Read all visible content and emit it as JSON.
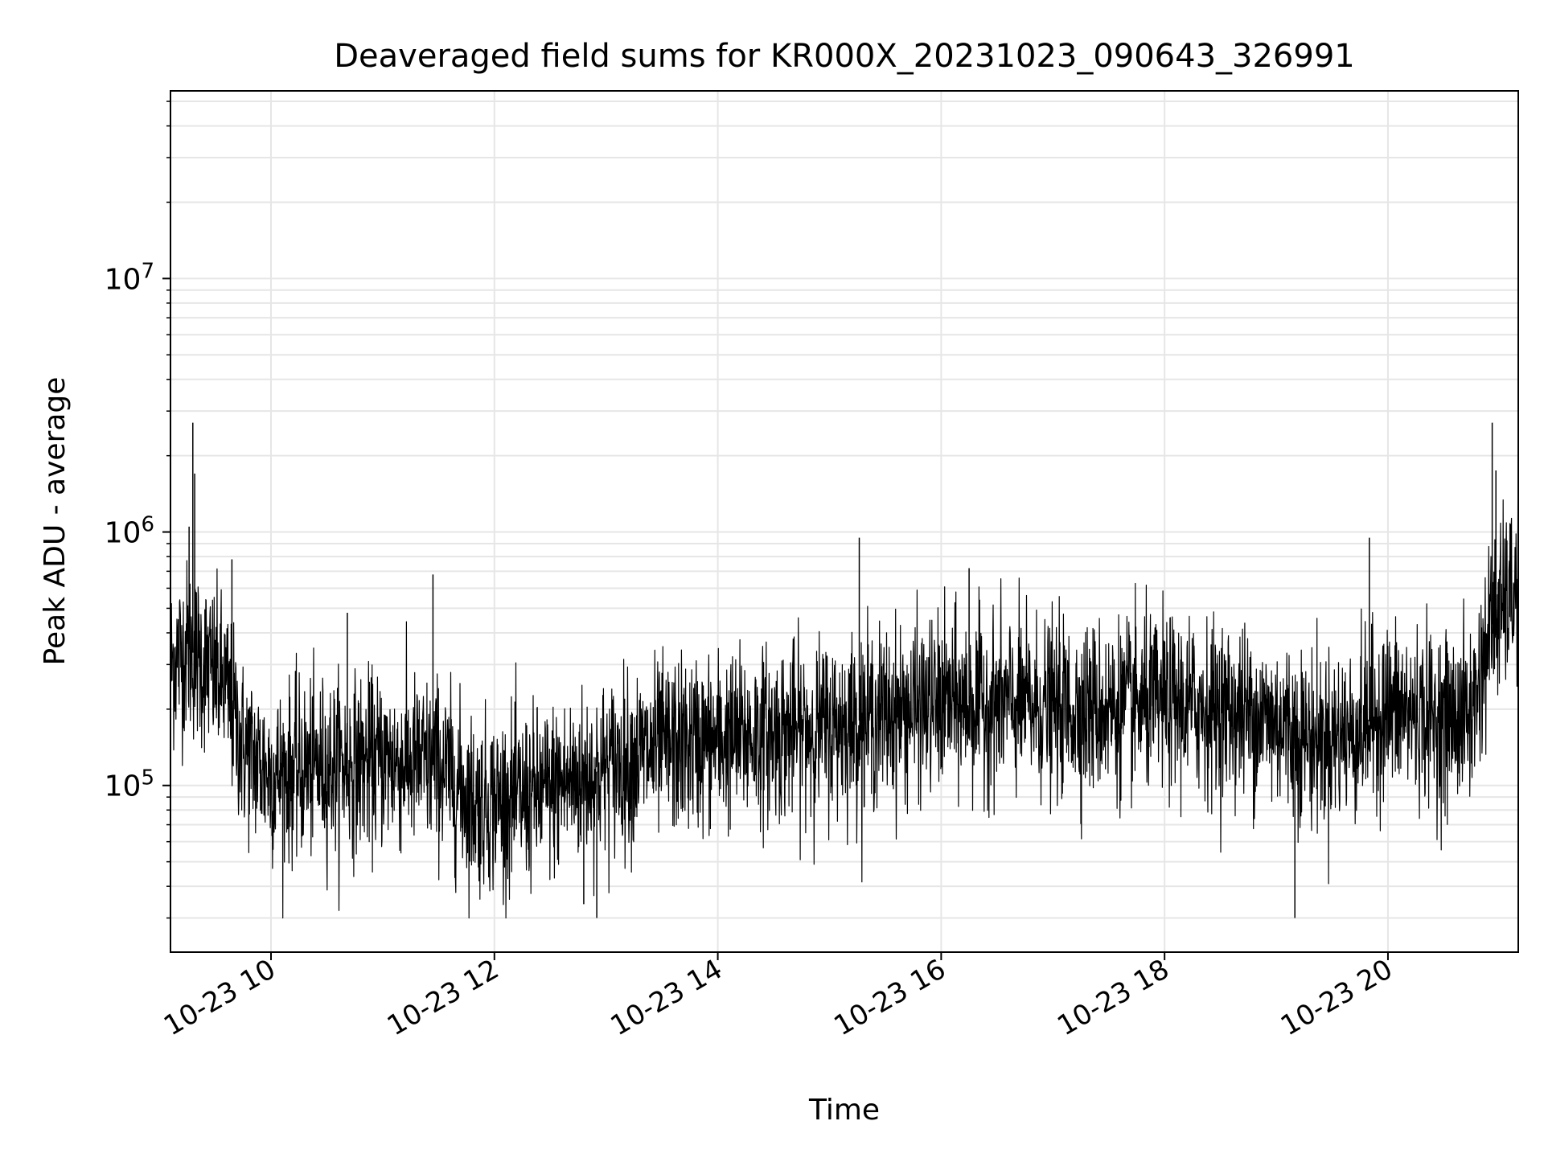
{
  "chart_data": {
    "type": "line",
    "title": "Deaveraged field sums for KR000X_20231023_090643_326991",
    "xlabel": "Time",
    "ylabel": "Peak ADU - average",
    "xscale": "time",
    "yscale": "log",
    "xlim": [
      "2023-10-23 09:06",
      "2023-10-23 21:10"
    ],
    "ylim": [
      22000,
      55000000
    ],
    "grid": true,
    "legend": "none",
    "x_ticks": [
      "10-23 10",
      "10-23 12",
      "10-23 14",
      "10-23 16",
      "10-23 18",
      "10-23 20"
    ],
    "y_ticks": [
      {
        "base": "10",
        "exp": "5"
      },
      {
        "base": "10",
        "exp": "6"
      },
      {
        "base": "10",
        "exp": "7"
      }
    ],
    "line_color": "#000000",
    "grid_color": "#e6e6e6",
    "series": [
      {
        "x": [
          "2023-10-23 09:06",
          "2023-10-23 09:15",
          "2023-10-23 09:25",
          "2023-10-23 09:35",
          "2023-10-23 09:45",
          "2023-10-23 10:00",
          "2023-10-23 10:30",
          "2023-10-23 11:00",
          "2023-10-23 11:30",
          "2023-10-23 11:50",
          "2023-10-23 12:20",
          "2023-10-23 12:50",
          "2023-10-23 13:30",
          "2023-10-23 14:00",
          "2023-10-23 14:30",
          "2023-10-23 15:00",
          "2023-10-23 15:30",
          "2023-10-23 16:00",
          "2023-10-23 16:30",
          "2023-10-23 17:00",
          "2023-10-23 17:30",
          "2023-10-23 18:00",
          "2023-10-23 18:30",
          "2023-10-23 19:00",
          "2023-10-23 19:20",
          "2023-10-23 19:40",
          "2023-10-23 20:00",
          "2023-10-23 20:30",
          "2023-10-23 20:45",
          "2023-10-23 20:55",
          "2023-10-23 21:05",
          "2023-10-23 21:10"
        ],
        "values": [
          300000,
          350000,
          300000,
          250000,
          140000,
          110000,
          120000,
          125000,
          120000,
          85000,
          90000,
          110000,
          140000,
          150000,
          160000,
          170000,
          190000,
          210000,
          210000,
          200000,
          200000,
          210000,
          200000,
          180000,
          150000,
          160000,
          200000,
          180000,
          190000,
          420000,
          550000,
          600000
        ]
      }
    ],
    "spikes": [
      {
        "x": "2023-10-23 09:18",
        "y": 2700000
      },
      {
        "x": "2023-10-23 09:19",
        "y": 1700000
      },
      {
        "x": "2023-10-23 09:16",
        "y": 1050000
      },
      {
        "x": "2023-10-23 09:39",
        "y": 780000
      },
      {
        "x": "2023-10-23 10:41",
        "y": 480000
      },
      {
        "x": "2023-10-23 11:27",
        "y": 680000
      },
      {
        "x": "2023-10-23 15:16",
        "y": 950000
      },
      {
        "x": "2023-10-23 16:15",
        "y": 720000
      },
      {
        "x": "2023-10-23 19:50",
        "y": 950000
      },
      {
        "x": "2023-10-23 20:56",
        "y": 2700000
      },
      {
        "x": "2023-10-23 20:58",
        "y": 1750000
      },
      {
        "x": "2023-10-23 12:55",
        "y": 30000
      },
      {
        "x": "2023-10-23 19:10",
        "y": 30000
      },
      {
        "x": "2023-10-23 12:48",
        "y": 34000
      }
    ]
  }
}
